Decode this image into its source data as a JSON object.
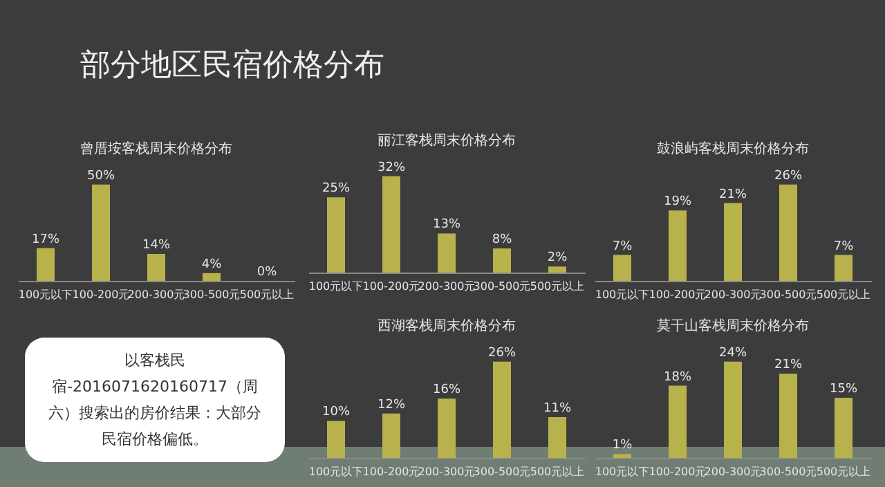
{
  "chart_data": [
    {
      "type": "other",
      "title": "部分地区民宿价格分布"
    },
    {
      "type": "bar",
      "title": "曾厝垵客栈周末价格分布",
      "categories": [
        "100元以下",
        "100-200元",
        "200-300元",
        "300-500元",
        "500元以上"
      ],
      "values": [
        17,
        50,
        14,
        4,
        0
      ],
      "value_labels": [
        "17%",
        "50%",
        "14%",
        "4%",
        "0%"
      ],
      "color": "#b8b24c"
    },
    {
      "type": "bar",
      "title": "丽江客栈周末价格分布",
      "categories": [
        "100元以下",
        "100-200元",
        "200-300元",
        "300-500元",
        "500元以上"
      ],
      "values": [
        25,
        32,
        13,
        8,
        2
      ],
      "value_labels": [
        "25%",
        "32%",
        "13%",
        "8%",
        "2%"
      ],
      "color": "#b8b24c"
    },
    {
      "type": "bar",
      "title": "鼓浪屿客栈周末价格分布",
      "categories": [
        "100元以下",
        "100-200元",
        "200-300元",
        "300-500元",
        "500元以上"
      ],
      "values": [
        7,
        19,
        21,
        26,
        7
      ],
      "value_labels": [
        "7%",
        "19%",
        "21%",
        "26%",
        "7%"
      ],
      "color": "#b8b24c"
    },
    {
      "type": "bar",
      "title": "西湖客栈周末价格分布",
      "categories": [
        "100元以下",
        "100-200元",
        "200-300元",
        "300-500元",
        "500元以上"
      ],
      "values": [
        10,
        12,
        16,
        26,
        11
      ],
      "value_labels": [
        "10%",
        "12%",
        "16%",
        "26%",
        "11%"
      ],
      "color": "#b8b24c"
    },
    {
      "type": "bar",
      "title": "莫干山客栈周末价格分布",
      "categories": [
        "100元以下",
        "100-200元",
        "200-300元",
        "300-500元",
        "500元以上"
      ],
      "values": [
        1,
        18,
        24,
        21,
        15
      ],
      "value_labels": [
        "1%",
        "18%",
        "24%",
        "21%",
        "15%"
      ],
      "color": "#b8b24c"
    },
    {
      "type": "other",
      "annotations": [
        "以客栈民宿-2016071620160717（周六）搜索出的房价结果：大部分民宿价格偏低。"
      ]
    }
  ]
}
